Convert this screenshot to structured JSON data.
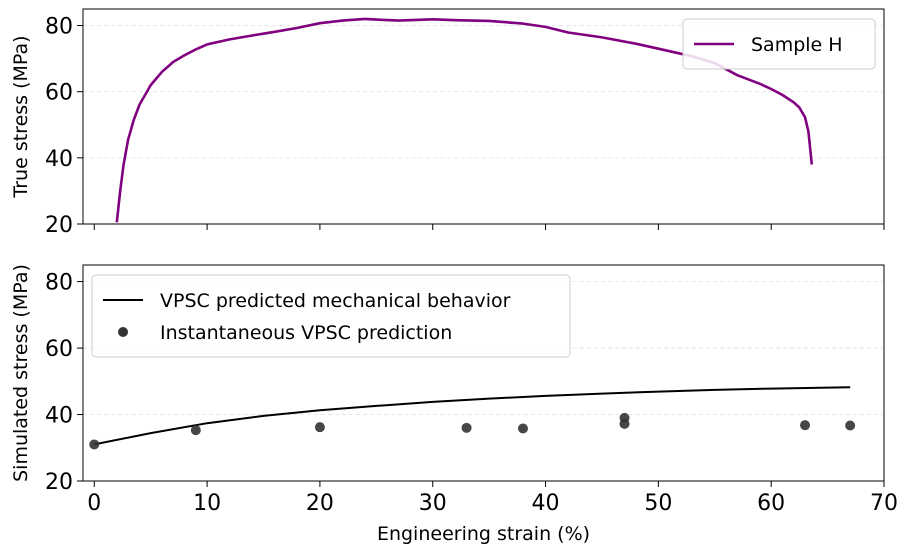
{
  "chart_data": [
    {
      "type": "line",
      "title": "",
      "xlabel": "",
      "ylabel": "True stress (MPa)",
      "xlim": [
        -1,
        70
      ],
      "ylim": [
        20,
        85
      ],
      "xticks": [
        0,
        10,
        20,
        30,
        40,
        50,
        60,
        70
      ],
      "yticks": [
        20,
        40,
        60,
        80
      ],
      "show_x_tick_labels": false,
      "grid": "horizontal dashed",
      "legend": "top-right",
      "series": [
        {
          "name": "Sample H",
          "color": "#800080",
          "x": [
            2.0,
            2.3,
            2.6,
            3.0,
            3.5,
            4.0,
            5.0,
            6.0,
            7.0,
            8.0,
            9.0,
            10.0,
            12.0,
            14.0,
            16.0,
            18.0,
            20.0,
            22.0,
            24.0,
            25.0,
            27.0,
            30.0,
            32.0,
            35.0,
            38.0,
            40.0,
            42.0,
            45.0,
            48.0,
            50.0,
            53.0,
            55.0,
            57.0,
            59.0,
            60.0,
            61.0,
            62.0,
            62.5,
            63.0,
            63.3,
            63.6
          ],
          "y": [
            20.5,
            30.0,
            38.0,
            45.5,
            51.5,
            56.0,
            62.0,
            66.0,
            69.0,
            71.0,
            72.8,
            74.3,
            75.8,
            77.0,
            78.1,
            79.3,
            80.7,
            81.5,
            82.0,
            81.8,
            81.5,
            81.9,
            81.6,
            81.4,
            80.6,
            79.6,
            77.9,
            76.4,
            74.5,
            73.0,
            70.7,
            68.6,
            65.0,
            62.4,
            60.8,
            59.0,
            56.8,
            55.2,
            52.3,
            48.0,
            38.0
          ]
        }
      ]
    },
    {
      "type": "line",
      "title": "",
      "xlabel": "Engineering strain (%)",
      "ylabel": "Simulated stress (MPa)",
      "xlim": [
        -1,
        70
      ],
      "ylim": [
        20,
        85
      ],
      "xticks": [
        0,
        10,
        20,
        30,
        40,
        50,
        60,
        70
      ],
      "yticks": [
        20,
        40,
        60,
        80
      ],
      "show_x_tick_labels": true,
      "grid": "horizontal dashed",
      "legend": "top-left",
      "series": [
        {
          "name": "VPSC predicted mechanical behavior",
          "kind": "line",
          "color": "#000000",
          "x": [
            0,
            5,
            10,
            15,
            20,
            25,
            30,
            35,
            40,
            45,
            50,
            55,
            60,
            65,
            67
          ],
          "y": [
            31.0,
            34.4,
            37.4,
            39.6,
            41.3,
            42.6,
            43.8,
            44.8,
            45.6,
            46.3,
            46.9,
            47.4,
            47.8,
            48.1,
            48.2
          ]
        },
        {
          "name": "Instantaneous VPSC prediction",
          "kind": "scatter",
          "color": "#333333",
          "x": [
            0,
            9,
            20,
            33,
            38,
            47,
            47,
            63,
            67
          ],
          "y": [
            31.0,
            35.3,
            36.2,
            36.0,
            35.8,
            39.0,
            37.2,
            36.8,
            36.7
          ]
        }
      ]
    }
  ]
}
